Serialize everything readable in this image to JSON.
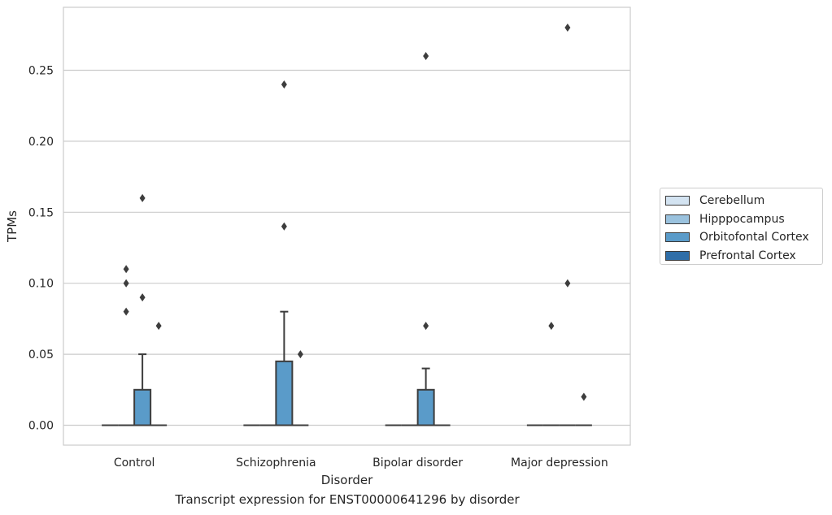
{
  "caption": "Transcript expression for ENST00000641296 by disorder",
  "chart_data": {
    "type": "box",
    "xlabel": "Disorder",
    "ylabel": "TPMs",
    "categories": [
      "Control",
      "Schizophrenia",
      "Bipolar disorder",
      "Major depression"
    ],
    "ylim": [
      -0.014,
      0.294
    ],
    "yticks": [
      0.0,
      0.05,
      0.1,
      0.15,
      0.2,
      0.25
    ],
    "ytick_labels": [
      "0.00",
      "0.05",
      "0.10",
      "0.15",
      "0.20",
      "0.25"
    ],
    "grid": true,
    "legend_position": "right",
    "series": [
      {
        "name": "Cerebellum",
        "color": "#d3e3f1",
        "boxes": [
          {
            "q1": 0,
            "median": 0,
            "q3": 0,
            "whisker_low": 0,
            "whisker_high": 0,
            "outliers": []
          },
          {
            "q1": 0,
            "median": 0,
            "q3": 0,
            "whisker_low": 0,
            "whisker_high": 0,
            "outliers": []
          },
          {
            "q1": 0,
            "median": 0,
            "q3": 0,
            "whisker_low": 0,
            "whisker_high": 0,
            "outliers": []
          },
          {
            "q1": 0,
            "median": 0,
            "q3": 0,
            "whisker_low": 0,
            "whisker_high": 0,
            "outliers": []
          }
        ]
      },
      {
        "name": "Hipppocampus",
        "color": "#9ac2de",
        "boxes": [
          {
            "q1": 0,
            "median": 0,
            "q3": 0,
            "whisker_low": 0,
            "whisker_high": 0,
            "outliers": [
              0.08,
              0.1,
              0.11
            ]
          },
          {
            "q1": 0,
            "median": 0,
            "q3": 0,
            "whisker_low": 0,
            "whisker_high": 0,
            "outliers": []
          },
          {
            "q1": 0,
            "median": 0,
            "q3": 0,
            "whisker_low": 0,
            "whisker_high": 0,
            "outliers": []
          },
          {
            "q1": 0,
            "median": 0,
            "q3": 0,
            "whisker_low": 0,
            "whisker_high": 0,
            "outliers": [
              0.07
            ]
          }
        ]
      },
      {
        "name": "Orbitofontal Cortex",
        "color": "#5a9bc9",
        "boxes": [
          {
            "q1": 0,
            "median": 0,
            "q3": 0.025,
            "whisker_low": 0,
            "whisker_high": 0.05,
            "outliers": [
              0.16,
              0.09
            ]
          },
          {
            "q1": 0,
            "median": 0,
            "q3": 0.045,
            "whisker_low": 0,
            "whisker_high": 0.08,
            "outliers": [
              0.24,
              0.14
            ]
          },
          {
            "q1": 0,
            "median": 0,
            "q3": 0.025,
            "whisker_low": 0,
            "whisker_high": 0.04,
            "outliers": [
              0.26,
              0.07
            ]
          },
          {
            "q1": 0,
            "median": 0,
            "q3": 0,
            "whisker_low": 0,
            "whisker_high": 0,
            "outliers": [
              0.28,
              0.1
            ]
          }
        ]
      },
      {
        "name": "Prefrontal Cortex",
        "color": "#2f6ea8",
        "boxes": [
          {
            "q1": 0,
            "median": 0,
            "q3": 0,
            "whisker_low": 0,
            "whisker_high": 0,
            "outliers": [
              0.07
            ]
          },
          {
            "q1": 0,
            "median": 0,
            "q3": 0,
            "whisker_low": 0,
            "whisker_high": 0,
            "outliers": [
              0.05
            ]
          },
          {
            "q1": 0,
            "median": 0,
            "q3": 0,
            "whisker_low": 0,
            "whisker_high": 0,
            "outliers": []
          },
          {
            "q1": 0,
            "median": 0,
            "q3": 0,
            "whisker_low": 0,
            "whisker_high": 0,
            "outliers": [
              0.02
            ]
          }
        ]
      }
    ]
  }
}
